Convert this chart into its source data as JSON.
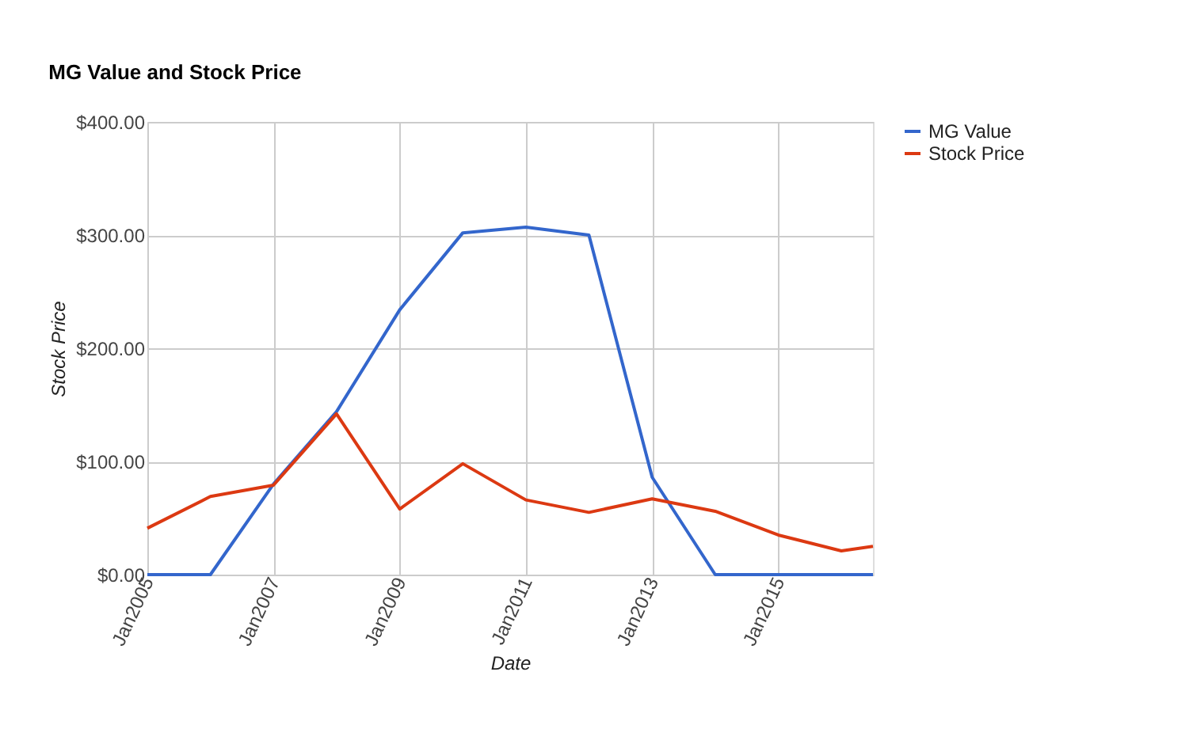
{
  "chart_data": {
    "type": "line",
    "title": "MG Value and Stock Price",
    "xlabel": "Date",
    "ylabel": "Stock Price",
    "x": [
      "2004-12-31",
      "2005-12-31",
      "2006-12-31",
      "2007-12-31",
      "2008-12-31",
      "2009-12-31",
      "2010-12-31",
      "2011-12-31",
      "2012-12-31",
      "2013-12-31",
      "2014-12-31",
      "2015-12-31",
      "2016-07-01"
    ],
    "series": [
      {
        "name": "MG Value",
        "color": "#3366cc",
        "values": [
          0,
          0,
          80,
          144,
          234,
          302,
          307,
          300,
          86,
          0,
          0,
          0,
          0
        ]
      },
      {
        "name": "Stock Price",
        "color": "#dc3912",
        "values": [
          41,
          69,
          79,
          142,
          58,
          98,
          66,
          55,
          67,
          56,
          35,
          21,
          25
        ]
      }
    ],
    "xlim": [
      "2004-12-31",
      "2016-07-01"
    ],
    "xticks": [
      {
        "value": "2005-01-01",
        "label": "Jan2005"
      },
      {
        "value": "2007-01-01",
        "label": "Jan2007"
      },
      {
        "value": "2009-01-01",
        "label": "Jan2009"
      },
      {
        "value": "2011-01-01",
        "label": "Jan2011"
      },
      {
        "value": "2013-01-01",
        "label": "Jan2013"
      },
      {
        "value": "2015-01-01",
        "label": "Jan2015"
      }
    ],
    "ylim": [
      0,
      400
    ],
    "yticks": [
      {
        "value": 0,
        "label": "$0.00"
      },
      {
        "value": 100,
        "label": "$100.00"
      },
      {
        "value": 200,
        "label": "$200.00"
      },
      {
        "value": 300,
        "label": "$300.00"
      },
      {
        "value": 400,
        "label": "$400.00"
      }
    ],
    "grid": true,
    "legend": "right",
    "line_style": "solid",
    "marker": "none"
  }
}
